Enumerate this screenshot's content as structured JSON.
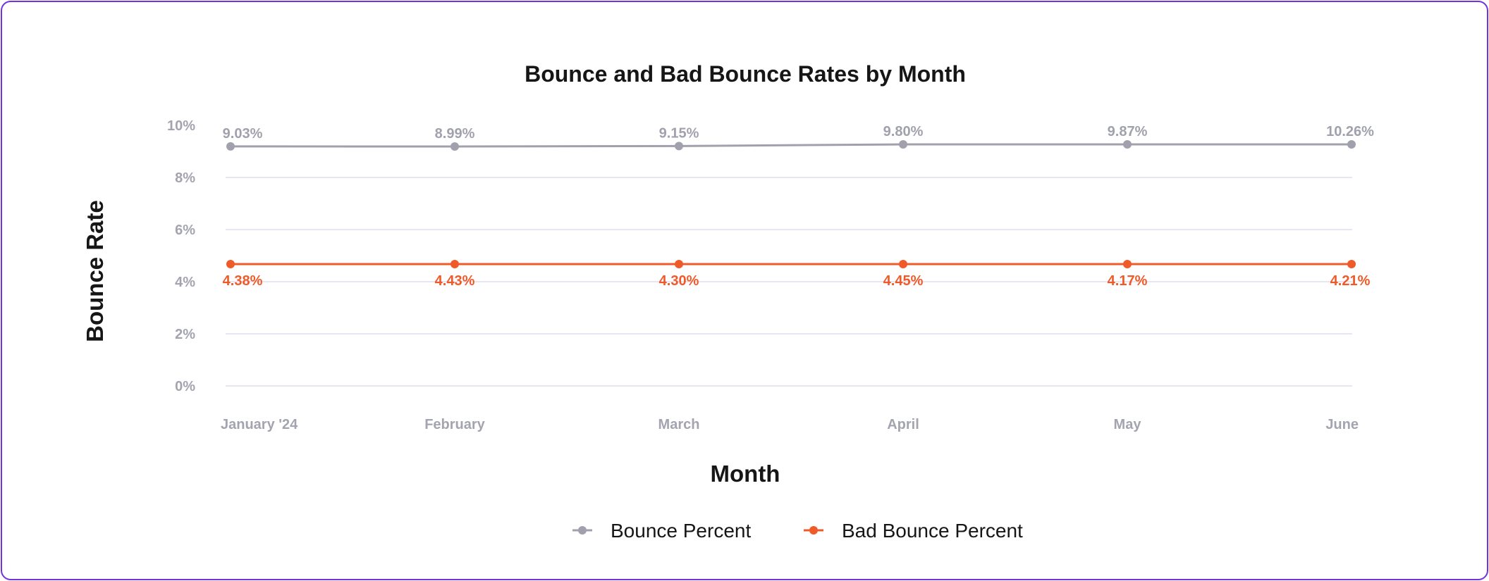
{
  "chart_data": {
    "type": "line",
    "title": "Bounce and Bad Bounce Rates by Month",
    "xlabel": "Month",
    "ylabel": "Bounce Rate",
    "categories": [
      "January '24",
      "February",
      "March",
      "April",
      "May",
      "June"
    ],
    "y_ticks": [
      "0%",
      "2%",
      "4%",
      "6%",
      "8%",
      "10%"
    ],
    "ylim": [
      0,
      10
    ],
    "grid": true,
    "legend_position": "bottom-center",
    "series": [
      {
        "name": "Bounce Percent",
        "color": "#a1a1ad",
        "values": [
          9.03,
          8.99,
          9.15,
          9.8,
          9.87,
          10.26
        ],
        "labels": [
          "9.03%",
          "8.99%",
          "9.15%",
          "9.80%",
          "9.87%",
          "10.26%"
        ]
      },
      {
        "name": "Bad Bounce Percent",
        "color": "#f05a28",
        "values": [
          4.38,
          4.43,
          4.3,
          4.45,
          4.17,
          4.21
        ],
        "labels": [
          "4.38%",
          "4.43%",
          "4.30%",
          "4.45%",
          "4.17%",
          "4.21%"
        ]
      }
    ]
  }
}
